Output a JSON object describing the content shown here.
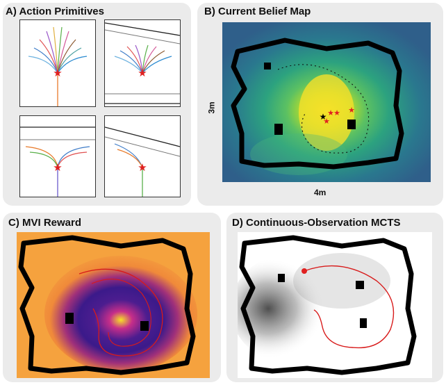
{
  "panels": {
    "a": {
      "title": "A) Action Primitives"
    },
    "b": {
      "title": "B) Current Belief Map",
      "ylabel": "3m",
      "xlabel": "4m"
    },
    "c": {
      "title": "C) MVI Reward"
    },
    "d": {
      "title": "D) Continuous-Observation MCTS"
    }
  },
  "colors": {
    "panel_bg": "#ebebeb",
    "robot_marker": "#e02020",
    "planned_path": "#d81b1b",
    "obstacle": "#000000",
    "trajectory": "#000000"
  },
  "icons": {
    "robot": "red-star-icon",
    "target_estimate": "black-star-icon"
  }
}
